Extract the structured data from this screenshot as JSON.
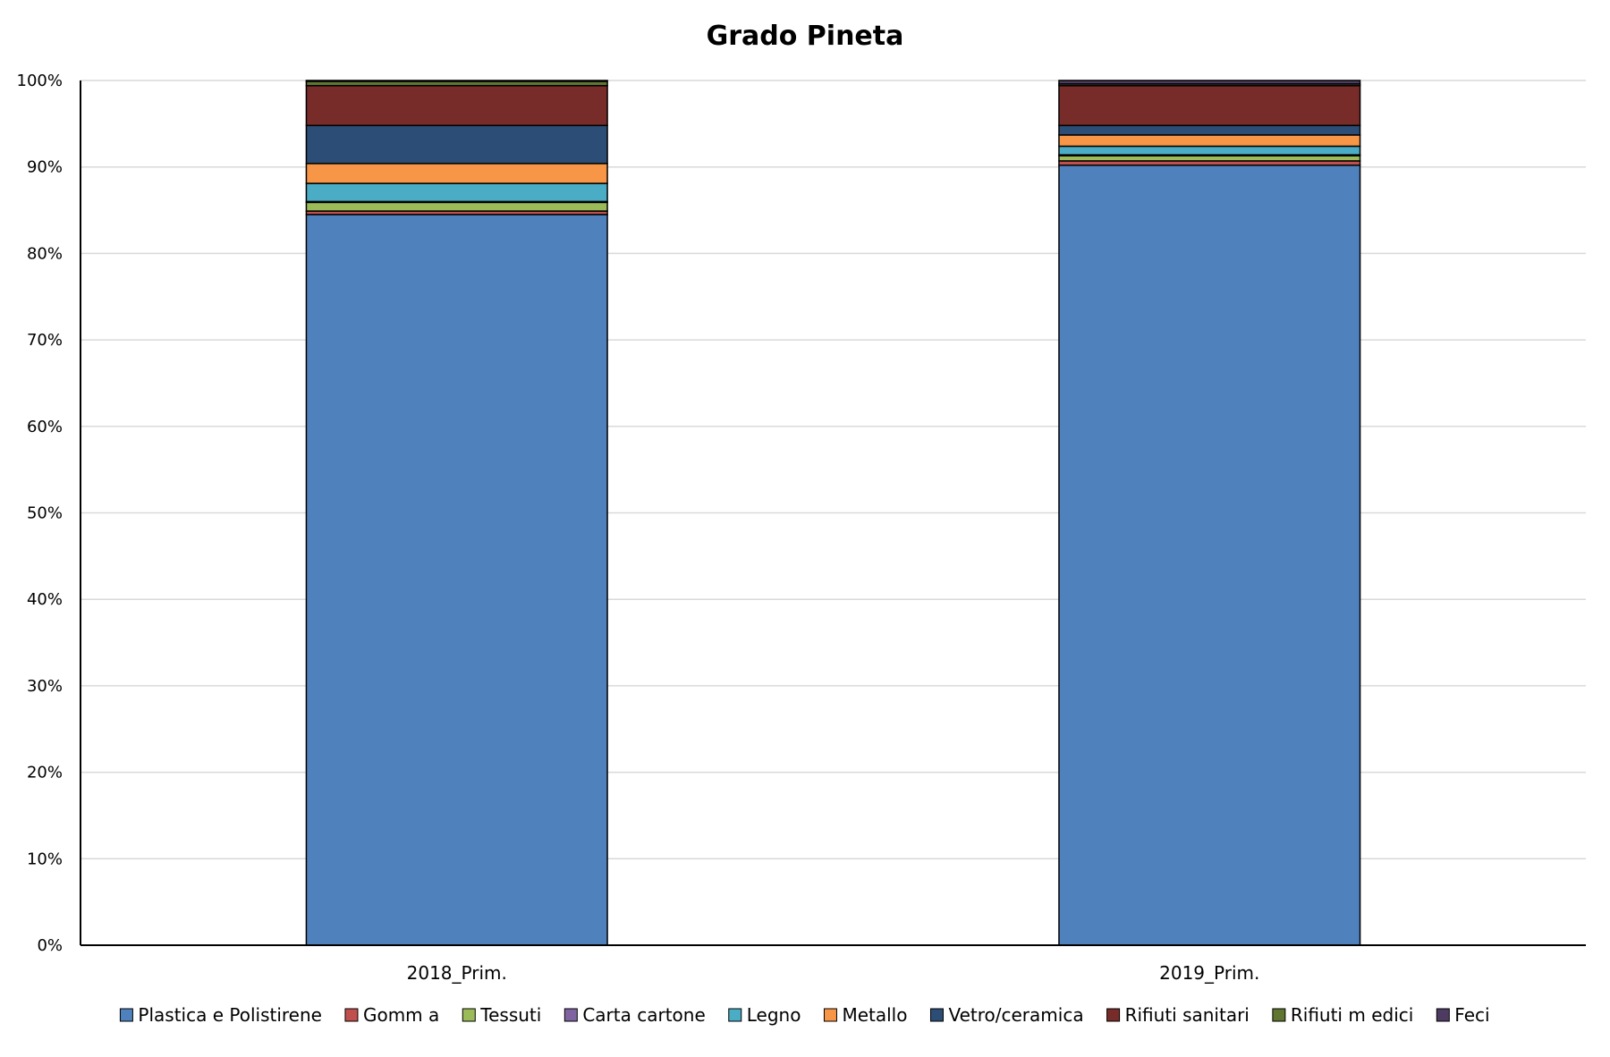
{
  "chart_data": {
    "type": "bar",
    "stacked": "percent",
    "title": "Grado Pineta",
    "xlabel": "",
    "ylabel": "",
    "ylim": [
      0,
      100
    ],
    "yticks": [
      "0%",
      "10%",
      "20%",
      "30%",
      "40%",
      "50%",
      "60%",
      "70%",
      "80%",
      "90%",
      "100%"
    ],
    "grid": true,
    "legend": "bottom",
    "categories": [
      "2018_Prim.",
      "2019_Prim."
    ],
    "series": [
      {
        "name": "Plastica e Polistirene",
        "color": "#4F81BD",
        "values": [
          84.5,
          90.2
        ]
      },
      {
        "name": "Gomm a",
        "color": "#C0504D",
        "values": [
          0.4,
          0.5
        ]
      },
      {
        "name": "Tessuti",
        "color": "#9BBB59",
        "values": [
          1.0,
          0.6
        ]
      },
      {
        "name": "Carta cartone",
        "color": "#8064A2",
        "values": [
          0.1,
          0.1
        ]
      },
      {
        "name": "Legno",
        "color": "#4BACC6",
        "values": [
          2.1,
          1.0
        ]
      },
      {
        "name": "Metallo",
        "color": "#F79646",
        "values": [
          2.3,
          1.3
        ]
      },
      {
        "name": "Vetro/ceramica",
        "color": "#2C4D75",
        "values": [
          4.4,
          1.1
        ]
      },
      {
        "name": "Rifiuti sanitari",
        "color": "#772C2A",
        "values": [
          4.6,
          4.6
        ]
      },
      {
        "name": "Rifiuti m edici",
        "color": "#5F7530",
        "values": [
          0.5,
          0.2
        ]
      },
      {
        "name": "Feci",
        "color": "#4D3B62",
        "values": [
          0.1,
          0.4
        ]
      }
    ]
  }
}
